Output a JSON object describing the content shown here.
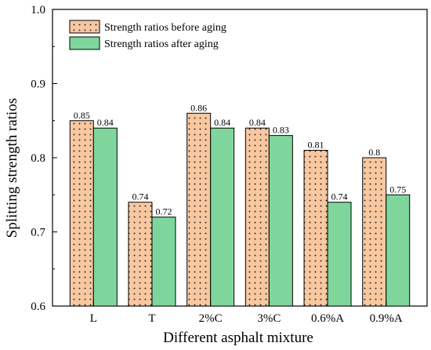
{
  "chart_data": {
    "type": "bar",
    "xlabel": "Different asphalt mixture",
    "ylabel": "Splitting strength ratios",
    "ylim": [
      0.6,
      1.0
    ],
    "yticks": [
      0.6,
      0.7,
      0.8,
      0.9,
      1.0
    ],
    "ytick_labels": [
      "0.6",
      "0.7",
      "0.8",
      "0.9",
      "1.0"
    ],
    "categories": [
      "L",
      "T",
      "2%C",
      "3%C",
      "0.6%A",
      "0.9%A"
    ],
    "series": [
      {
        "name": "Strength ratios before aging",
        "values": [
          0.85,
          0.74,
          0.86,
          0.84,
          0.81,
          0.8
        ],
        "labels": [
          "0.85",
          "0.74",
          "0.86",
          "0.84",
          "0.81",
          "0.8"
        ],
        "color": "#f9c8a0",
        "pattern": "dotted"
      },
      {
        "name": "Strength ratios after aging",
        "values": [
          0.84,
          0.72,
          0.84,
          0.83,
          0.74,
          0.75
        ],
        "labels": [
          "0.84",
          "0.72",
          "0.84",
          "0.83",
          "0.74",
          "0.75"
        ],
        "color": "#7ed69c",
        "pattern": "solid"
      }
    ],
    "legend_position": "top-left",
    "grid": false
  }
}
